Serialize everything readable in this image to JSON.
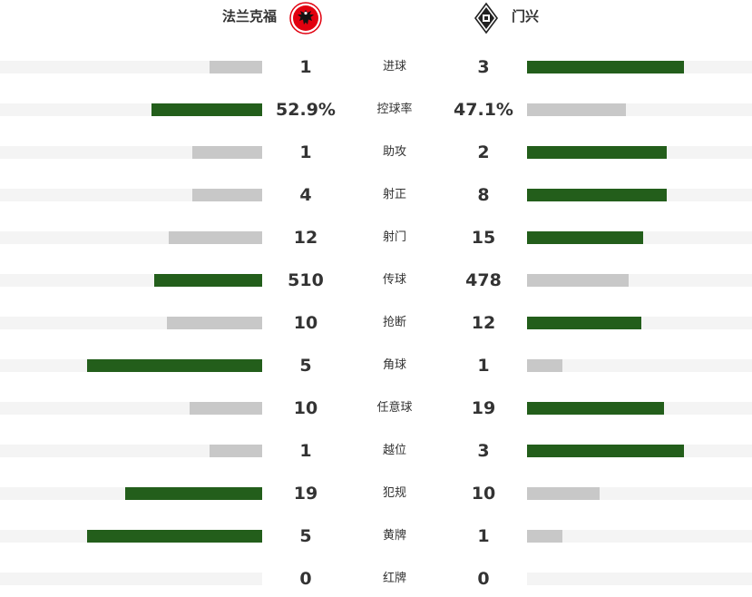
{
  "teams": {
    "home": {
      "name": "法兰克福",
      "logo_icon": "eintracht-frankfurt-eagle-logo"
    },
    "away": {
      "name": "门兴",
      "logo_icon": "borussia-monchengladbach-logo"
    }
  },
  "colors": {
    "leader": "#235e1b",
    "trailer": "#c8c8c8",
    "track": "#f4f4f4",
    "logo_red": "#e1000f"
  },
  "stats": [
    {
      "label": "进球",
      "home": "1",
      "away": "3",
      "home_share": 0.25,
      "away_share": 0.75,
      "leader": "away"
    },
    {
      "label": "控球率",
      "home": "52.9%",
      "away": "47.1%",
      "home_share": 0.529,
      "away_share": 0.471,
      "leader": "home"
    },
    {
      "label": "助攻",
      "home": "1",
      "away": "2",
      "home_share": 0.333,
      "away_share": 0.667,
      "leader": "away"
    },
    {
      "label": "射正",
      "home": "4",
      "away": "8",
      "home_share": 0.333,
      "away_share": 0.667,
      "leader": "away"
    },
    {
      "label": "射门",
      "home": "12",
      "away": "15",
      "home_share": 0.444,
      "away_share": 0.556,
      "leader": "away"
    },
    {
      "label": "传球",
      "home": "510",
      "away": "478",
      "home_share": 0.516,
      "away_share": 0.484,
      "leader": "home"
    },
    {
      "label": "抢断",
      "home": "10",
      "away": "12",
      "home_share": 0.455,
      "away_share": 0.545,
      "leader": "away"
    },
    {
      "label": "角球",
      "home": "5",
      "away": "1",
      "home_share": 0.833,
      "away_share": 0.167,
      "leader": "home"
    },
    {
      "label": "任意球",
      "home": "10",
      "away": "19",
      "home_share": 0.345,
      "away_share": 0.655,
      "leader": "away"
    },
    {
      "label": "越位",
      "home": "1",
      "away": "3",
      "home_share": 0.25,
      "away_share": 0.75,
      "leader": "away"
    },
    {
      "label": "犯规",
      "home": "19",
      "away": "10",
      "home_share": 0.655,
      "away_share": 0.345,
      "leader": "home"
    },
    {
      "label": "黄牌",
      "home": "5",
      "away": "1",
      "home_share": 0.833,
      "away_share": 0.167,
      "leader": "home"
    },
    {
      "label": "红牌",
      "home": "0",
      "away": "0",
      "home_share": 0,
      "away_share": 0,
      "leader": "none"
    }
  ]
}
